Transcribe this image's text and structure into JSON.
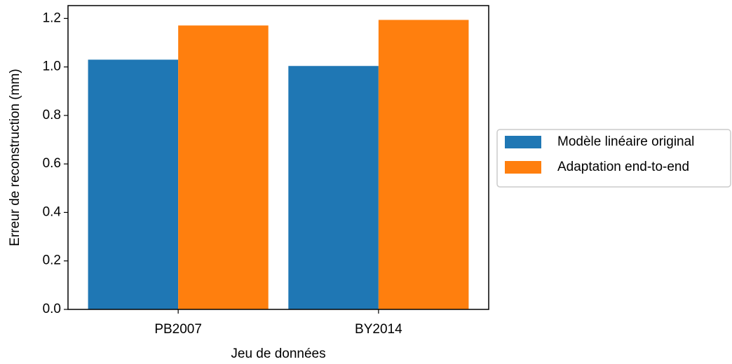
{
  "chart_data": {
    "type": "bar",
    "x_label": "Jeu de données",
    "y_label": "Erreur de reconstruction (mm)",
    "categories": [
      "PB2007",
      "BY2014"
    ],
    "series": [
      {
        "name": "Modèle linéaire original",
        "color": "#1f77b4",
        "values": [
          1.03,
          1.004
        ]
      },
      {
        "name": "Adaptation end-to-end",
        "color": "#ff7f0e",
        "values": [
          1.171,
          1.194
        ]
      }
    ],
    "ylim": [
      0,
      1.253
    ],
    "yticks": [
      {
        "value": 0,
        "label": "0.0"
      },
      0.2,
      0.4,
      0.6,
      0.8,
      {
        "value": 1,
        "label": "1.0"
      },
      1.2
    ],
    "legend": "right"
  }
}
